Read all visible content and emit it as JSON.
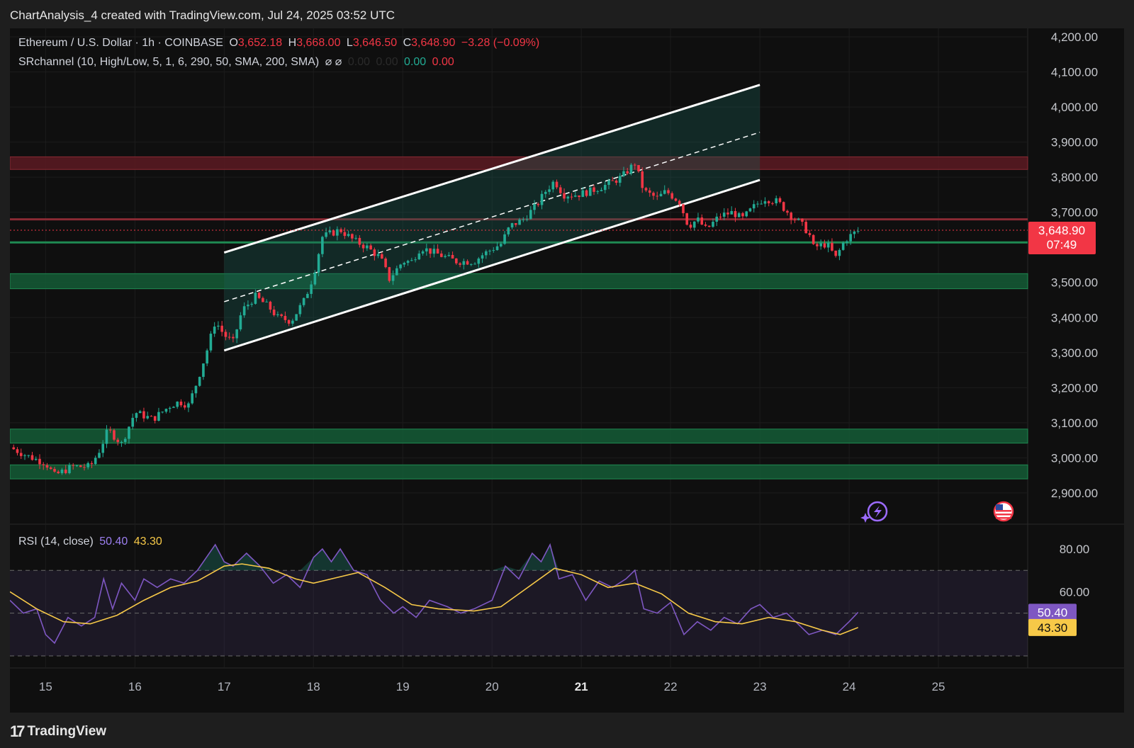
{
  "header": {
    "title": "ChartAnalysis_4 created with TradingView.com, Jul 24, 2025 03:52 UTC"
  },
  "legend": {
    "symbol": "Ethereum / U.S. Dollar · 1h · COINBASE",
    "open_label": "O",
    "open": "3,652.18",
    "high_label": "H",
    "high": "3,668.00",
    "low_label": "L",
    "low": "3,646.50",
    "close_label": "C",
    "close": "3,648.90",
    "change": "−3.28 (−0.09%)",
    "indicator": "SRchannel (10, High/Low, 5, 1, 6, 290, 50, SMA, 200, SMA)",
    "indicator_icons": "⌀ ⌀",
    "ind_v1": "0.00",
    "ind_v2": "0.00",
    "ind_v3": "0.00",
    "ind_v4": "0.00"
  },
  "rsi_legend": {
    "label": "RSI (14, close)",
    "rsi_value": "50.40",
    "ma_value": "43.30"
  },
  "price_tag": {
    "price": "3,648.90",
    "countdown": "07:49"
  },
  "footer": {
    "brand": "TradingView",
    "logo": "17"
  },
  "colors": {
    "up": "#22ab94",
    "down": "#f23645",
    "rsi_line": "#7e57c2",
    "rsi_ma": "#f7c948",
    "support_zone": "#1b5e3b",
    "resistance_zone": "#5c1a22"
  },
  "chart_data": [
    {
      "type": "candlestick",
      "title": "Ethereum / U.S. Dollar · 1h · COINBASE",
      "x_ticks": [
        "15",
        "16",
        "17",
        "18",
        "19",
        "20",
        "21",
        "22",
        "23",
        "24",
        "25"
      ],
      "y_ticks": [
        "4,200.00",
        "4,100.00",
        "4,000.00",
        "3,900.00",
        "3,800.00",
        "3,700.00",
        "3,500.00",
        "3,400.00",
        "3,300.00",
        "3,200.00",
        "3,100.00",
        "3,000.00",
        "2,900.00"
      ],
      "ylim": [
        2860,
        4240
      ],
      "xlim": [
        14.6,
        26.0
      ],
      "last_price": 3648.9,
      "price_path": [
        [
          14.6,
          3030
        ],
        [
          14.8,
          3005
        ],
        [
          15.0,
          2985
        ],
        [
          15.1,
          2950
        ],
        [
          15.3,
          2975
        ],
        [
          15.5,
          2975
        ],
        [
          15.6,
          3020
        ],
        [
          15.7,
          3080
        ],
        [
          15.85,
          3040
        ],
        [
          16.0,
          3130
        ],
        [
          16.2,
          3110
        ],
        [
          16.4,
          3150
        ],
        [
          16.5,
          3160
        ],
        [
          16.6,
          3150
        ],
        [
          16.7,
          3220
        ],
        [
          16.8,
          3300
        ],
        [
          16.9,
          3390
        ],
        [
          17.0,
          3350
        ],
        [
          17.1,
          3330
        ],
        [
          17.2,
          3420
        ],
        [
          17.35,
          3460
        ],
        [
          17.5,
          3430
        ],
        [
          17.6,
          3400
        ],
        [
          17.75,
          3390
        ],
        [
          17.9,
          3450
        ],
        [
          18.0,
          3520
        ],
        [
          18.1,
          3630
        ],
        [
          18.2,
          3640
        ],
        [
          18.3,
          3650
        ],
        [
          18.45,
          3620
        ],
        [
          18.6,
          3600
        ],
        [
          18.75,
          3570
        ],
        [
          18.85,
          3510
        ],
        [
          19.0,
          3560
        ],
        [
          19.1,
          3560
        ],
        [
          19.2,
          3600
        ],
        [
          19.4,
          3580
        ],
        [
          19.6,
          3560
        ],
        [
          19.8,
          3560
        ],
        [
          19.9,
          3580
        ],
        [
          20.1,
          3610
        ],
        [
          20.2,
          3660
        ],
        [
          20.35,
          3680
        ],
        [
          20.5,
          3720
        ],
        [
          20.6,
          3760
        ],
        [
          20.7,
          3790
        ],
        [
          20.8,
          3750
        ],
        [
          20.95,
          3750
        ],
        [
          21.1,
          3760
        ],
        [
          21.3,
          3780
        ],
        [
          21.45,
          3800
        ],
        [
          21.6,
          3840
        ],
        [
          21.7,
          3760
        ],
        [
          21.85,
          3740
        ],
        [
          21.95,
          3760
        ],
        [
          22.1,
          3730
        ],
        [
          22.2,
          3660
        ],
        [
          22.3,
          3680
        ],
        [
          22.4,
          3650
        ],
        [
          22.55,
          3690
        ],
        [
          22.7,
          3700
        ],
        [
          22.8,
          3680
        ],
        [
          22.95,
          3720
        ],
        [
          23.05,
          3740
        ],
        [
          23.2,
          3730
        ],
        [
          23.35,
          3690
        ],
        [
          23.45,
          3670
        ],
        [
          23.55,
          3640
        ],
        [
          23.6,
          3600
        ],
        [
          23.75,
          3610
        ],
        [
          23.85,
          3570
        ],
        [
          23.95,
          3620
        ],
        [
          24.05,
          3640
        ],
        [
          24.12,
          3648.9
        ]
      ],
      "zones": [
        {
          "kind": "resistance",
          "low": 3822,
          "high": 3858
        },
        {
          "kind": "support",
          "low": 3482,
          "high": 3525
        },
        {
          "kind": "support",
          "low": 3042,
          "high": 3082
        },
        {
          "kind": "support",
          "low": 2940,
          "high": 2980
        }
      ],
      "levels": [
        {
          "kind": "resistance",
          "price": 3680
        },
        {
          "kind": "support",
          "price": 3614
        }
      ],
      "channel": {
        "upper": [
          [
            17.0,
            3585
          ],
          [
            23.0,
            4063
          ]
        ],
        "middle": [
          [
            17.0,
            3445
          ],
          [
            23.0,
            3928
          ]
        ],
        "lower": [
          [
            17.0,
            3306
          ],
          [
            23.0,
            3792
          ]
        ]
      }
    },
    {
      "type": "line",
      "title": "RSI (14, close)",
      "y_ticks": [
        "80.00",
        "60.00"
      ],
      "ylim": [
        30,
        85
      ],
      "bands": [
        70,
        50,
        30
      ],
      "series": [
        {
          "name": "RSI",
          "values": [
            [
              14.6,
              56
            ],
            [
              14.75,
              50
            ],
            [
              14.9,
              52
            ],
            [
              15.0,
              40
            ],
            [
              15.1,
              36
            ],
            [
              15.25,
              48
            ],
            [
              15.4,
              44
            ],
            [
              15.55,
              48
            ],
            [
              15.65,
              66
            ],
            [
              15.75,
              52
            ],
            [
              15.85,
              64
            ],
            [
              16.0,
              56
            ],
            [
              16.1,
              66
            ],
            [
              16.25,
              62
            ],
            [
              16.4,
              66
            ],
            [
              16.55,
              64
            ],
            [
              16.7,
              70
            ],
            [
              16.8,
              76
            ],
            [
              16.9,
              82
            ],
            [
              17.0,
              74
            ],
            [
              17.1,
              72
            ],
            [
              17.25,
              78
            ],
            [
              17.4,
              72
            ],
            [
              17.55,
              64
            ],
            [
              17.7,
              68
            ],
            [
              17.85,
              62
            ],
            [
              18.0,
              76
            ],
            [
              18.1,
              80
            ],
            [
              18.2,
              74
            ],
            [
              18.3,
              80
            ],
            [
              18.45,
              70
            ],
            [
              18.6,
              68
            ],
            [
              18.75,
              56
            ],
            [
              18.9,
              50
            ],
            [
              19.0,
              53
            ],
            [
              19.15,
              48
            ],
            [
              19.3,
              56
            ],
            [
              19.5,
              53
            ],
            [
              19.65,
              50
            ],
            [
              19.8,
              52
            ],
            [
              20.0,
              56
            ],
            [
              20.15,
              72
            ],
            [
              20.3,
              66
            ],
            [
              20.45,
              78
            ],
            [
              20.55,
              74
            ],
            [
              20.65,
              82
            ],
            [
              20.75,
              66
            ],
            [
              20.9,
              68
            ],
            [
              21.05,
              56
            ],
            [
              21.2,
              65
            ],
            [
              21.35,
              62
            ],
            [
              21.5,
              66
            ],
            [
              21.6,
              70
            ],
            [
              21.7,
              52
            ],
            [
              21.85,
              50
            ],
            [
              22.0,
              55
            ],
            [
              22.15,
              40
            ],
            [
              22.3,
              46
            ],
            [
              22.45,
              42
            ],
            [
              22.6,
              48
            ],
            [
              22.75,
              45
            ],
            [
              22.9,
              52
            ],
            [
              23.0,
              54
            ],
            [
              23.15,
              48
            ],
            [
              23.3,
              50
            ],
            [
              23.45,
              44
            ],
            [
              23.55,
              40
            ],
            [
              23.7,
              42
            ],
            [
              23.85,
              40
            ],
            [
              24.0,
              46
            ],
            [
              24.1,
              50.4
            ]
          ]
        },
        {
          "name": "RSI-based MA",
          "values": [
            [
              14.6,
              60
            ],
            [
              14.9,
              52
            ],
            [
              15.2,
              46
            ],
            [
              15.5,
              45
            ],
            [
              15.8,
              49
            ],
            [
              16.1,
              56
            ],
            [
              16.4,
              62
            ],
            [
              16.7,
              65
            ],
            [
              17.0,
              72
            ],
            [
              17.2,
              73
            ],
            [
              17.5,
              71
            ],
            [
              17.8,
              66
            ],
            [
              18.0,
              64
            ],
            [
              18.3,
              67
            ],
            [
              18.5,
              69
            ],
            [
              18.8,
              62
            ],
            [
              19.1,
              54
            ],
            [
              19.4,
              52
            ],
            [
              19.8,
              51
            ],
            [
              20.1,
              53
            ],
            [
              20.4,
              62
            ],
            [
              20.7,
              71
            ],
            [
              21.0,
              68
            ],
            [
              21.3,
              62
            ],
            [
              21.6,
              64
            ],
            [
              21.9,
              59
            ],
            [
              22.2,
              50
            ],
            [
              22.5,
              46
            ],
            [
              22.8,
              45
            ],
            [
              23.1,
              48
            ],
            [
              23.4,
              46
            ],
            [
              23.7,
              42
            ],
            [
              23.9,
              40
            ],
            [
              24.1,
              43.3
            ]
          ]
        }
      ]
    }
  ]
}
